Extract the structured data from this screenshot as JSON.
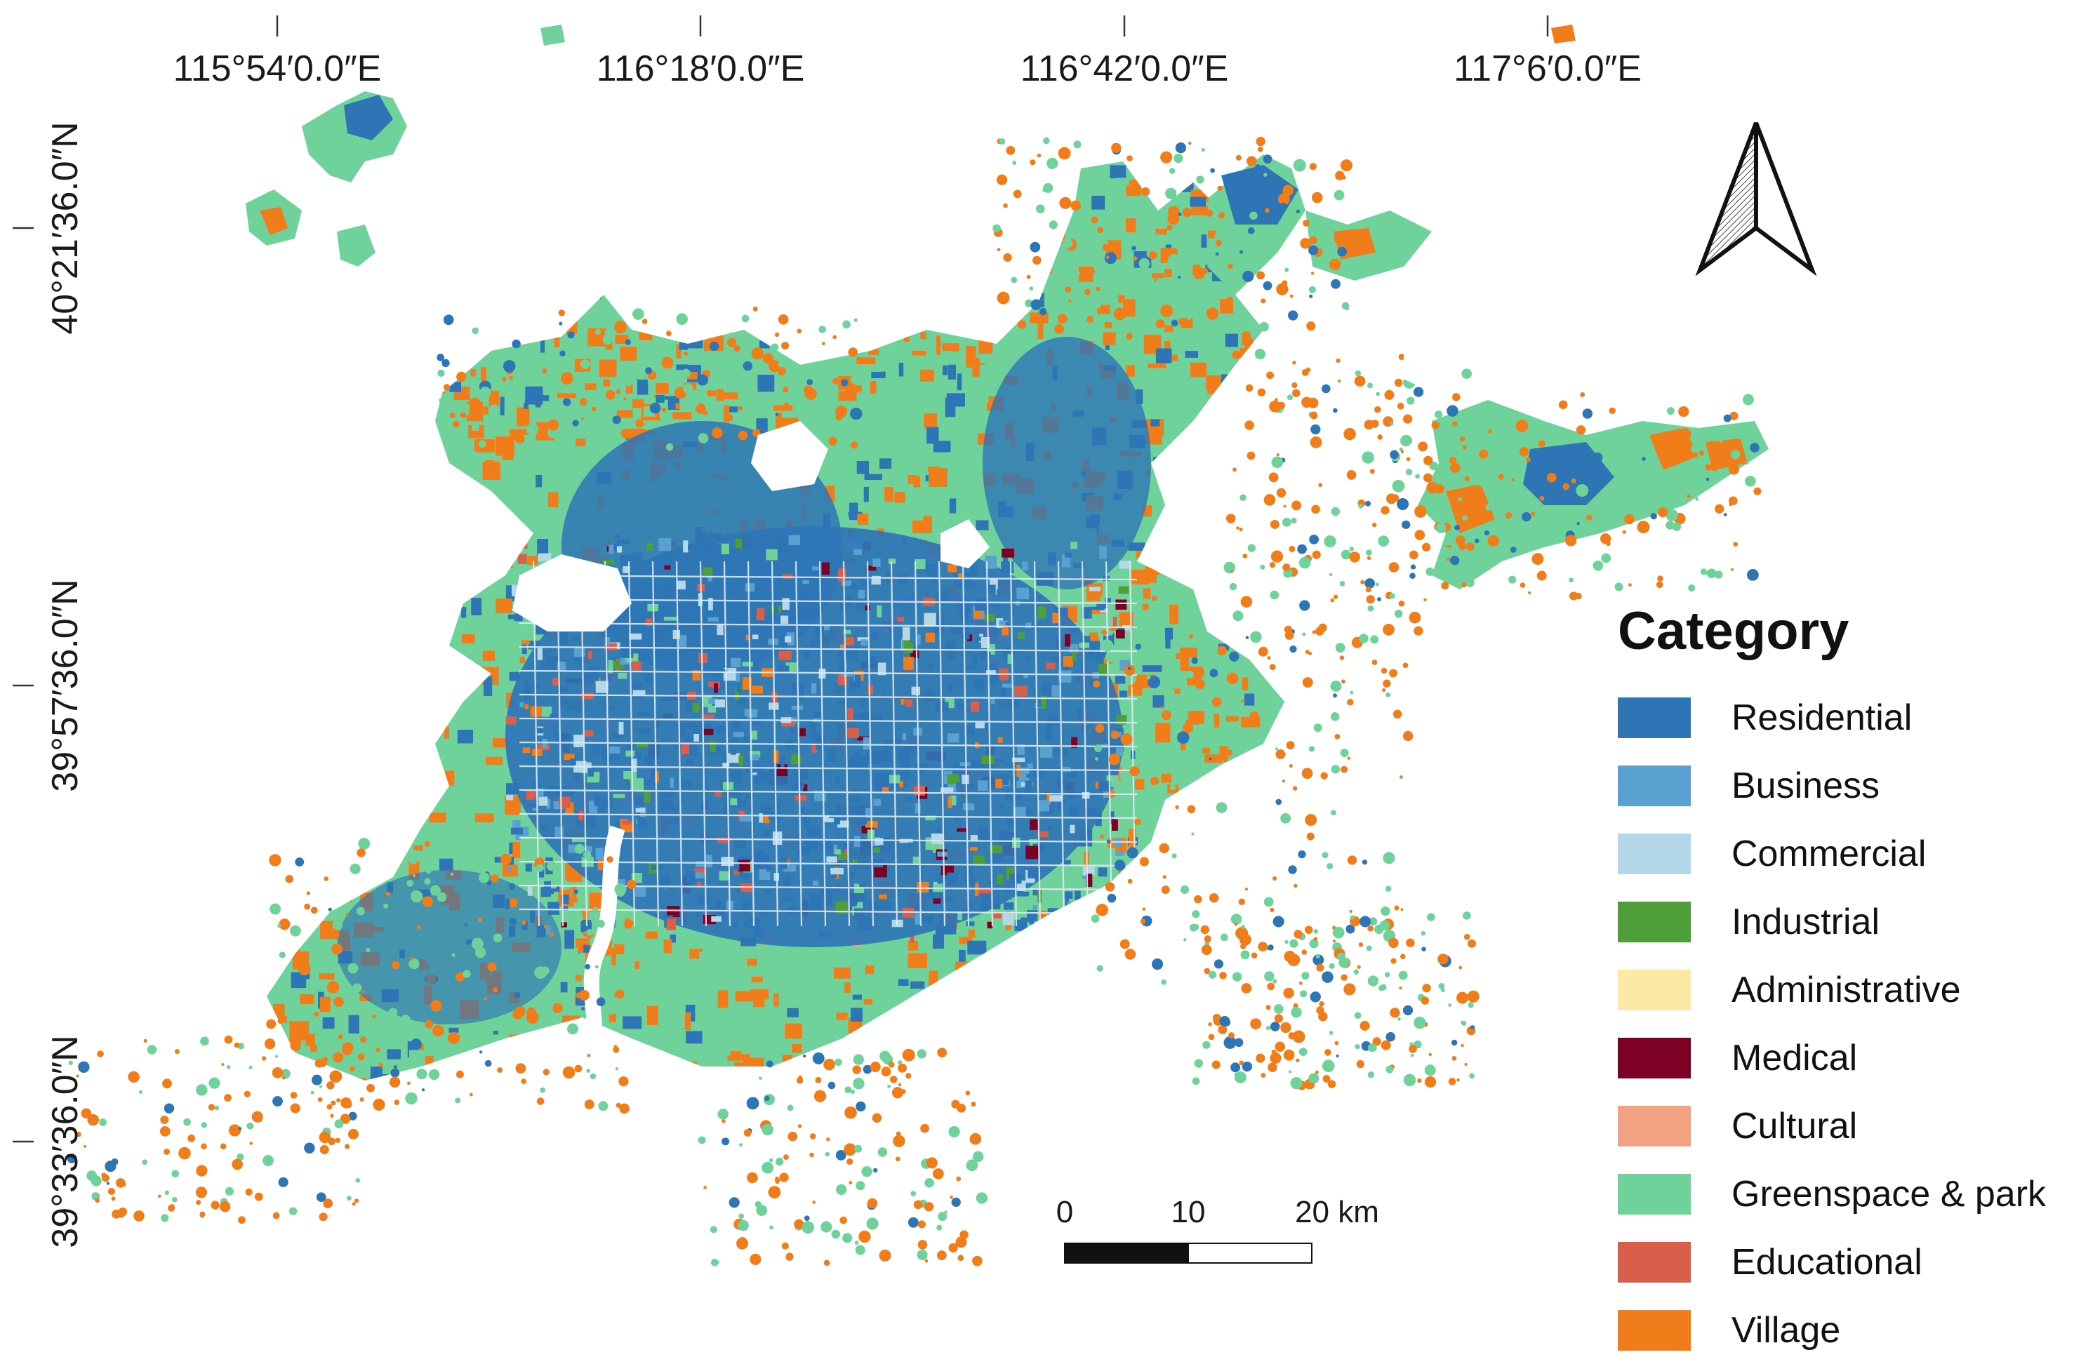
{
  "graticule": {
    "longitudes": [
      "115°54′0.0″E",
      "116°18′0.0″E",
      "116°42′0.0″E",
      "117°6′0.0″E"
    ],
    "latitudes": [
      "40°21′36.0″N",
      "39°57′36.0″N",
      "39°33′36.0″N"
    ]
  },
  "legend": {
    "title": "Category",
    "items": [
      {
        "label": "Residential",
        "color": "#2e75b6"
      },
      {
        "label": "Business",
        "color": "#5aa0d0"
      },
      {
        "label": "Commercial",
        "color": "#b5d7ea"
      },
      {
        "label": "Industrial",
        "color": "#4e9e3a"
      },
      {
        "label": "Administrative",
        "color": "#fce9a6"
      },
      {
        "label": "Medical",
        "color": "#7d0025"
      },
      {
        "label": "Cultural",
        "color": "#f2a283"
      },
      {
        "label": "Greenspace & park",
        "color": "#6fd29b"
      },
      {
        "label": "Educational",
        "color": "#d95f4b"
      },
      {
        "label": "Village",
        "color": "#f07d1a"
      }
    ]
  },
  "scale_bar": {
    "labels": [
      "0",
      "10",
      "20 km"
    ]
  },
  "north_arrow": {
    "icon": "north-arrow-icon"
  }
}
